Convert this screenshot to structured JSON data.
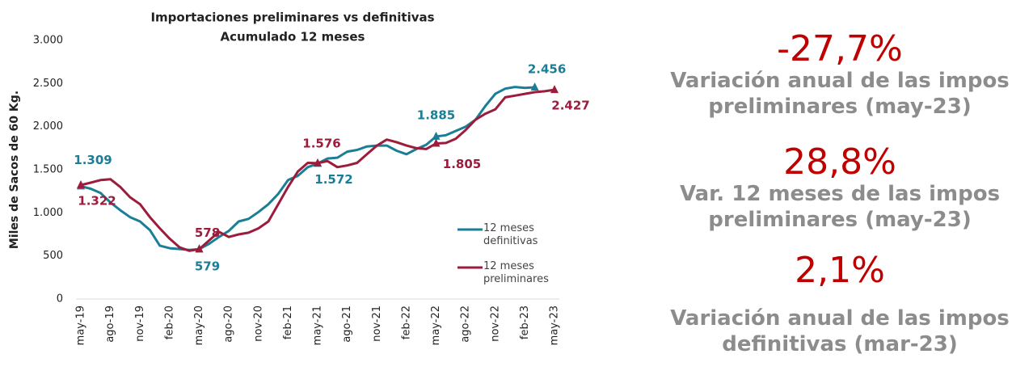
{
  "chart_data": {
    "type": "line",
    "title": "Importaciones preliminares vs definitivas",
    "subtitle": "Acumulado 12 meses",
    "y_label": "Miles de Sacos de 60 Kg.",
    "categories": [
      "may-19",
      null,
      null,
      "ago-19",
      null,
      null,
      "nov-19",
      null,
      null,
      "feb-20",
      null,
      null,
      "may-20",
      null,
      null,
      "ago-20",
      null,
      null,
      "nov-20",
      null,
      null,
      "feb-21",
      null,
      null,
      "may-21",
      null,
      null,
      "ago-21",
      null,
      null,
      "nov-21",
      null,
      null,
      "feb-22",
      null,
      null,
      "may-22",
      null,
      null,
      "ago-22",
      null,
      null,
      "nov-22",
      null,
      null,
      "feb-23",
      null,
      null,
      "may-23"
    ],
    "ylim": [
      0,
      3000
    ],
    "yticks": [
      0,
      500,
      {
        "value": 1000,
        "label": "1.000"
      },
      {
        "value": 1500,
        "label": "1.500"
      },
      {
        "value": 2000,
        "label": "2.000"
      },
      {
        "value": 2500,
        "label": "2.500"
      },
      {
        "value": 3000,
        "label": "3.000"
      }
    ],
    "legend": "inside right",
    "series": [
      {
        "name": "12 meses definitivas",
        "color": "#1a7f96",
        "values": [
          1309,
          1280,
          1230,
          1120,
          1030,
          950,
          900,
          800,
          620,
          590,
          580,
          570,
          579,
          640,
          720,
          790,
          900,
          930,
          1010,
          1100,
          1220,
          1380,
          1430,
          1530,
          1572,
          1630,
          1640,
          1710,
          1730,
          1770,
          1780,
          1780,
          1720,
          1680,
          1740,
          1790,
          1885,
          1900,
          1950,
          2000,
          2080,
          2240,
          2380,
          2440,
          2460,
          2450,
          2456,
          null,
          null
        ],
        "value_labels": [
          "1.309",
          null,
          null,
          null,
          null,
          null,
          null,
          null,
          null,
          null,
          null,
          null,
          "579",
          null,
          null,
          null,
          null,
          null,
          null,
          null,
          null,
          null,
          null,
          null,
          "1.572",
          null,
          null,
          null,
          null,
          null,
          null,
          null,
          null,
          null,
          null,
          null,
          "1.885",
          null,
          null,
          null,
          null,
          null,
          null,
          null,
          null,
          null,
          "2.456",
          null,
          null
        ]
      },
      {
        "name": "12 meses preliminares",
        "color": "#9c1c3c",
        "values": [
          1322,
          1350,
          1380,
          1390,
          1300,
          1180,
          1100,
          950,
          820,
          700,
          600,
          560,
          578,
          680,
          780,
          720,
          750,
          770,
          820,
          900,
          1100,
          1300,
          1480,
          1580,
          1576,
          1600,
          1530,
          1550,
          1580,
          1680,
          1780,
          1850,
          1820,
          1780,
          1750,
          1740,
          1805,
          1810,
          1860,
          1960,
          2080,
          2150,
          2200,
          2340,
          2360,
          2380,
          2400,
          2410,
          2427
        ],
        "value_labels": [
          "1.322",
          null,
          null,
          null,
          null,
          null,
          null,
          null,
          null,
          null,
          null,
          null,
          "578",
          null,
          null,
          null,
          null,
          null,
          null,
          null,
          null,
          null,
          null,
          null,
          "1.576",
          null,
          null,
          null,
          null,
          null,
          null,
          null,
          null,
          null,
          null,
          null,
          "1.805",
          null,
          null,
          null,
          null,
          null,
          null,
          null,
          null,
          null,
          null,
          null,
          "2.427"
        ]
      }
    ]
  },
  "indicators": [
    {
      "value": "-27,7%",
      "label": "Variación anual de las impos preliminares (may-23)"
    },
    {
      "value": "28,8%",
      "label": "Var. 12 meses de las impos preliminares (may-23)"
    },
    {
      "value": "2,1%",
      "label": "Variación anual de las impos definitivas (mar-23)"
    }
  ]
}
